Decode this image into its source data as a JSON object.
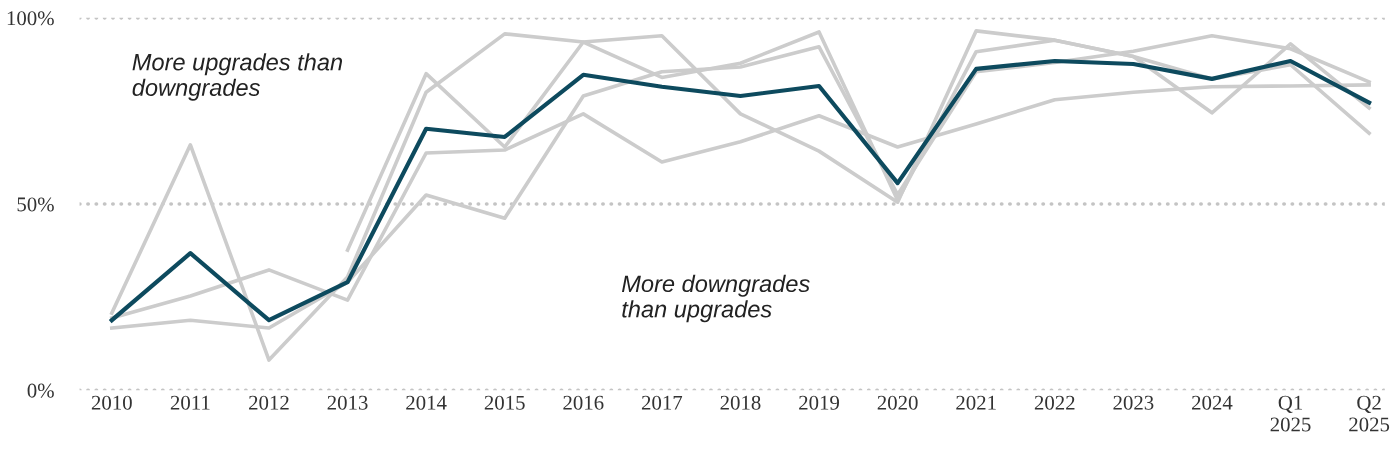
{
  "chart_data": {
    "type": "line",
    "categories": [
      "2010",
      "2011",
      "2012",
      "2013",
      "2014",
      "2015",
      "2016",
      "2017",
      "2018",
      "2019",
      "2020",
      "2021",
      "2022",
      "2023",
      "2024",
      "Q1\n2025",
      "Q2\n2025"
    ],
    "series": [
      {
        "color": "#cccccc",
        "values": [
          20.7,
          65.9,
          8.1,
          30.4,
          80,
          95.7,
          93.5,
          84,
          87.8,
          96.2,
          51,
          90.9,
          94,
          89.6,
          74.5,
          93,
          75.8
        ]
      },
      {
        "color": "#cccccc",
        "values": [
          19.4,
          25.3,
          32.3,
          24.2,
          63.7,
          64.5,
          74.2,
          61.3,
          66.7,
          73.7,
          65.3,
          71.5,
          78,
          80,
          81.5,
          81.7,
          82
        ]
      },
      {
        "color": "#cccccc",
        "values": [
          16.7,
          18.8,
          16.7,
          29,
          52.4,
          46.2,
          79,
          85.5,
          86.8,
          92.2,
          52.5,
          85.5,
          88,
          91,
          95.2,
          91.7,
          82.8
        ]
      },
      {
        "color": "#cccccc",
        "values": [
          null,
          null,
          null,
          37.6,
          85,
          65.3,
          93.5,
          95.2,
          74.2,
          64.2,
          50.5,
          96.5,
          94,
          89.6,
          83.6,
          87.4,
          69
        ]
      },
      {
        "color": "#0d4a5e",
        "values": [
          18.8,
          36.8,
          18.8,
          29,
          70.2,
          68,
          84.7,
          81.5,
          79,
          81.7,
          55.6,
          86.3,
          88.4,
          87.6,
          83.6,
          88.4,
          77.2
        ]
      }
    ],
    "ylim": [
      0,
      100
    ],
    "yticks": [
      {
        "value": 0,
        "label": "0%"
      },
      {
        "value": 50,
        "label": "50%"
      },
      {
        "value": 100,
        "label": "100%"
      }
    ],
    "grid": "y",
    "annotations": [
      "More upgrades than\ndowngrades",
      "More downgrades\nthan upgrades"
    ]
  }
}
